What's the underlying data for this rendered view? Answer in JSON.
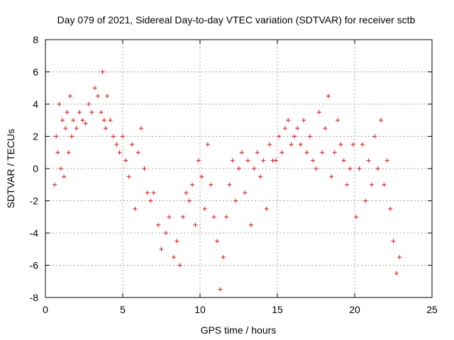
{
  "chart_data": {
    "type": "scatter",
    "title": "Day 079 of 2021, Sidereal Day-to-day VTEC variation (SDTVAR) for receiver sctb",
    "xlabel": "GPS time / hours",
    "ylabel": "SDTVAR / TECUs",
    "xlim": [
      0,
      25
    ],
    "ylim": [
      -8,
      8
    ],
    "xticks": [
      0,
      5,
      10,
      15,
      20,
      25
    ],
    "yticks": [
      -8,
      -6,
      -4,
      -2,
      0,
      2,
      4,
      6,
      8
    ],
    "grid": true,
    "marker": "+",
    "color": "#ff0000",
    "series": [
      {
        "name": "SDTVAR",
        "x": [
          0.6,
          0.7,
          0.8,
          0.9,
          1.0,
          1.1,
          1.2,
          1.3,
          1.4,
          1.5,
          1.6,
          1.7,
          1.8,
          2.0,
          2.2,
          2.4,
          2.6,
          2.8,
          3.0,
          3.2,
          3.4,
          3.6,
          3.7,
          3.8,
          3.9,
          4.0,
          4.2,
          4.4,
          4.6,
          4.8,
          5.0,
          5.2,
          5.4,
          5.6,
          5.8,
          6.0,
          6.2,
          6.4,
          6.6,
          6.8,
          7.0,
          7.3,
          7.5,
          7.8,
          8.0,
          8.3,
          8.5,
          8.7,
          8.9,
          9.1,
          9.3,
          9.5,
          9.7,
          9.9,
          10.1,
          10.3,
          10.5,
          10.7,
          10.9,
          11.1,
          11.3,
          11.5,
          11.7,
          11.9,
          12.1,
          12.3,
          12.5,
          12.7,
          12.9,
          13.1,
          13.3,
          13.5,
          13.7,
          13.9,
          14.1,
          14.3,
          14.5,
          14.7,
          14.9,
          15.1,
          15.3,
          15.5,
          15.7,
          15.9,
          16.1,
          16.3,
          16.5,
          16.7,
          16.9,
          17.1,
          17.3,
          17.5,
          17.7,
          17.9,
          18.1,
          18.3,
          18.5,
          18.7,
          18.9,
          19.1,
          19.3,
          19.5,
          19.7,
          19.9,
          20.1,
          20.3,
          20.5,
          20.7,
          20.9,
          21.1,
          21.3,
          21.5,
          21.7,
          21.9,
          22.1,
          22.3,
          22.5,
          22.7,
          22.9
        ],
        "y": [
          -1.0,
          2.0,
          1.0,
          4.0,
          0.0,
          3.0,
          -0.5,
          2.5,
          3.5,
          1.0,
          4.5,
          2.0,
          3.0,
          2.5,
          3.5,
          3.0,
          2.8,
          4.0,
          3.5,
          5.0,
          4.5,
          3.5,
          6.0,
          3.0,
          2.5,
          4.5,
          3.0,
          2.0,
          1.5,
          1.0,
          2.0,
          0.5,
          -0.5,
          1.5,
          -2.5,
          1.0,
          2.5,
          0.0,
          -1.5,
          -2.0,
          -1.5,
          -3.5,
          -5.0,
          -4.0,
          -3.0,
          -5.5,
          -4.5,
          -6.0,
          -3.0,
          -1.5,
          -2.0,
          -1.0,
          -3.5,
          0.5,
          -0.5,
          -2.5,
          1.5,
          -1.0,
          -3.0,
          -4.5,
          -7.5,
          -5.5,
          -3.0,
          -1.0,
          0.5,
          -2.0,
          0.0,
          1.0,
          -1.5,
          0.5,
          -3.5,
          0.0,
          1.0,
          -0.5,
          0.5,
          -2.5,
          1.5,
          0.5,
          0.5,
          2.0,
          1.0,
          2.5,
          3.0,
          1.5,
          2.0,
          2.5,
          1.5,
          3.0,
          1.0,
          2.0,
          0.5,
          0.0,
          3.5,
          1.0,
          2.5,
          4.5,
          -0.5,
          1.0,
          3.0,
          1.5,
          0.5,
          -1.0,
          0.0,
          1.5,
          -3.0,
          0.0,
          1.5,
          -2.0,
          0.5,
          -1.0,
          2.0,
          0.0,
          3.0,
          -1.0,
          0.5,
          -2.5,
          -4.5,
          -6.5,
          -5.5
        ]
      }
    ]
  }
}
